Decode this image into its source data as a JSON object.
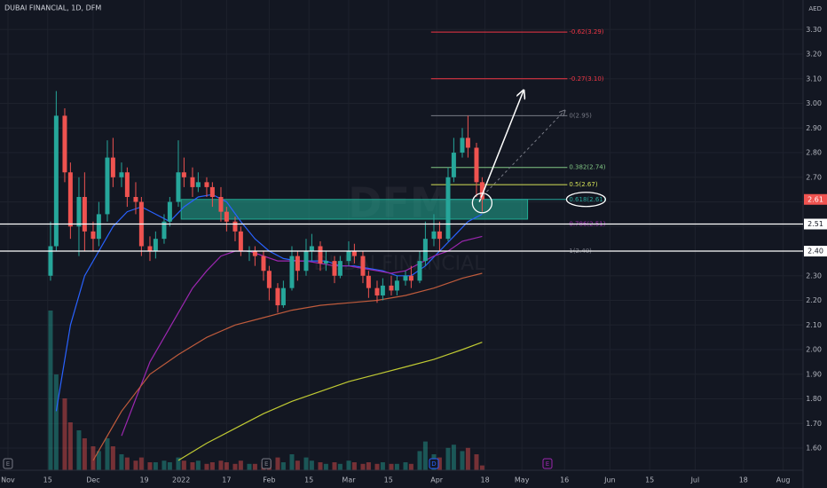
{
  "chart_data": {
    "type": "candlestick",
    "title": "DUBAI FINANCIAL, 1D, DFM",
    "watermark": "DFM",
    "watermark_subtitle": "DUBAI FINANCIAL",
    "axis_unit": "AED",
    "up_color": "#26a69a",
    "down_color": "#ef5350",
    "grid": true,
    "xlim": [
      -2.8,
      280
    ],
    "ylim": [
      1.51,
      3.42
    ],
    "xticks": [
      {
        "value": 0,
        "label": "Nov"
      },
      {
        "value": 14,
        "label": "15"
      },
      {
        "value": 30,
        "label": "Dec"
      },
      {
        "value": 48,
        "label": "19"
      },
      {
        "value": 61,
        "label": "2022"
      },
      {
        "value": 77,
        "label": "17"
      },
      {
        "value": 92,
        "label": "Feb"
      },
      {
        "value": 106,
        "label": "15"
      },
      {
        "value": 120,
        "label": "Mar"
      },
      {
        "value": 134,
        "label": "15"
      },
      {
        "value": 151,
        "label": "Apr"
      },
      {
        "value": 168,
        "label": "18"
      },
      {
        "value": 181,
        "label": "May"
      },
      {
        "value": 196,
        "label": "16"
      },
      {
        "value": 212,
        "label": "Jun"
      },
      {
        "value": 226,
        "label": "15"
      },
      {
        "value": 242,
        "label": "Jul"
      },
      {
        "value": 259,
        "label": "18"
      },
      {
        "value": 273,
        "label": "Aug"
      }
    ],
    "yticks": [
      {
        "value": 3.3,
        "label": "3.30"
      },
      {
        "value": 3.2,
        "label": "3.20"
      },
      {
        "value": 3.1,
        "label": "3.10"
      },
      {
        "value": 3.0,
        "label": "3.00"
      },
      {
        "value": 2.9,
        "label": "2.90"
      },
      {
        "value": 2.8,
        "label": "2.80"
      },
      {
        "value": 2.7,
        "label": "2.70"
      },
      {
        "value": 2.6,
        "label": "2.60"
      },
      {
        "value": 2.5,
        "label": "2.50"
      },
      {
        "value": 2.4,
        "label": "2.40"
      },
      {
        "value": 2.3,
        "label": "2.30"
      },
      {
        "value": 2.2,
        "label": "2.20"
      },
      {
        "value": 2.1,
        "label": "2.10"
      },
      {
        "value": 2.0,
        "label": "2.00"
      },
      {
        "value": 1.9,
        "label": "1.90"
      },
      {
        "value": 1.8,
        "label": "1.80"
      },
      {
        "value": 1.7,
        "label": "1.70"
      },
      {
        "value": 1.6,
        "label": "1.60"
      }
    ],
    "x": [
      15,
      17,
      20,
      22,
      25,
      27,
      30,
      32,
      35,
      37,
      40,
      42,
      45,
      47,
      50,
      52,
      55,
      57,
      60,
      62,
      65,
      67,
      70,
      72,
      75,
      77,
      80,
      82,
      85,
      87,
      90,
      92,
      95,
      97,
      100,
      102,
      105,
      107,
      110,
      112,
      115,
      117,
      120,
      122,
      125,
      127,
      130,
      132,
      135,
      137,
      140,
      142,
      145,
      147,
      150,
      152,
      155,
      157,
      160,
      162,
      165,
      167
    ],
    "open": [
      2.3,
      2.42,
      2.95,
      2.72,
      2.5,
      2.62,
      2.48,
      2.45,
      2.55,
      2.78,
      2.7,
      2.72,
      2.62,
      2.6,
      2.42,
      2.4,
      2.45,
      2.52,
      2.6,
      2.72,
      2.7,
      2.66,
      2.68,
      2.66,
      2.62,
      2.56,
      2.52,
      2.48,
      2.4,
      2.4,
      2.38,
      2.32,
      2.25,
      2.18,
      2.25,
      2.38,
      2.32,
      2.4,
      2.42,
      2.35,
      2.36,
      2.3,
      2.36,
      2.4,
      2.38,
      2.3,
      2.25,
      2.22,
      2.26,
      2.24,
      2.28,
      2.3,
      2.28,
      2.36,
      2.45,
      2.48,
      2.45,
      2.7,
      2.8,
      2.86,
      2.82,
      2.68
    ],
    "high": [
      2.52,
      3.05,
      2.98,
      2.76,
      2.7,
      2.72,
      2.52,
      2.6,
      2.85,
      2.86,
      2.76,
      2.74,
      2.68,
      2.62,
      2.46,
      2.48,
      2.55,
      2.62,
      2.85,
      2.78,
      2.74,
      2.72,
      2.7,
      2.68,
      2.66,
      2.58,
      2.54,
      2.5,
      2.42,
      2.42,
      2.4,
      2.34,
      2.27,
      2.28,
      2.42,
      2.4,
      2.45,
      2.47,
      2.44,
      2.4,
      2.38,
      2.38,
      2.44,
      2.43,
      2.4,
      2.32,
      2.28,
      2.29,
      2.3,
      2.3,
      2.32,
      2.34,
      2.4,
      2.52,
      2.55,
      2.52,
      2.74,
      2.86,
      2.9,
      2.95,
      2.84,
      2.7
    ],
    "low": [
      2.28,
      2.4,
      2.68,
      2.45,
      2.38,
      2.4,
      2.4,
      2.42,
      2.52,
      2.66,
      2.66,
      2.58,
      2.55,
      2.38,
      2.36,
      2.37,
      2.43,
      2.5,
      2.58,
      2.66,
      2.62,
      2.64,
      2.62,
      2.58,
      2.52,
      2.48,
      2.44,
      2.38,
      2.36,
      2.34,
      2.28,
      2.2,
      2.15,
      2.17,
      2.24,
      2.28,
      2.3,
      2.36,
      2.32,
      2.32,
      2.27,
      2.29,
      2.34,
      2.35,
      2.27,
      2.21,
      2.19,
      2.2,
      2.22,
      2.22,
      2.26,
      2.25,
      2.27,
      2.34,
      2.42,
      2.4,
      2.44,
      2.68,
      2.78,
      2.78,
      2.62,
      2.56
    ],
    "close": [
      2.42,
      2.95,
      2.72,
      2.5,
      2.62,
      2.48,
      2.45,
      2.55,
      2.78,
      2.7,
      2.72,
      2.62,
      2.6,
      2.42,
      2.4,
      2.45,
      2.52,
      2.6,
      2.72,
      2.7,
      2.66,
      2.68,
      2.66,
      2.62,
      2.56,
      2.52,
      2.48,
      2.4,
      2.4,
      2.38,
      2.32,
      2.25,
      2.18,
      2.25,
      2.38,
      2.32,
      2.4,
      2.42,
      2.35,
      2.36,
      2.3,
      2.36,
      2.4,
      2.38,
      2.3,
      2.25,
      2.22,
      2.26,
      2.24,
      2.28,
      2.3,
      2.28,
      2.36,
      2.45,
      2.48,
      2.45,
      2.7,
      2.8,
      2.86,
      2.82,
      2.68,
      2.61
    ],
    "volume": [
      100,
      60,
      45,
      30,
      25,
      20,
      15,
      12,
      20,
      15,
      10,
      8,
      6,
      8,
      5,
      5,
      6,
      5,
      8,
      6,
      5,
      6,
      4,
      5,
      6,
      5,
      4,
      6,
      4,
      4,
      5,
      6,
      8,
      5,
      10,
      6,
      8,
      6,
      5,
      4,
      5,
      4,
      6,
      5,
      4,
      5,
      4,
      5,
      4,
      4,
      5,
      4,
      12,
      18,
      10,
      8,
      14,
      16,
      12,
      14,
      10,
      3
    ],
    "moving_averages": [
      {
        "color": "#2962ff",
        "x": [
          17,
          22,
          27,
          32,
          37,
          42,
          47,
          52,
          57,
          62,
          67,
          72,
          77,
          82,
          87,
          92,
          97,
          102,
          107,
          112,
          117,
          122,
          127,
          132,
          137,
          142,
          147,
          152,
          157,
          162,
          167
        ],
        "values": [
          1.75,
          2.1,
          2.3,
          2.4,
          2.5,
          2.56,
          2.58,
          2.55,
          2.52,
          2.58,
          2.62,
          2.63,
          2.6,
          2.52,
          2.45,
          2.4,
          2.37,
          2.36,
          2.36,
          2.36,
          2.34,
          2.34,
          2.33,
          2.32,
          2.3,
          2.3,
          2.34,
          2.4,
          2.46,
          2.52,
          2.55
        ]
      },
      {
        "color": "#9c27b0",
        "x": [
          40,
          45,
          50,
          55,
          60,
          65,
          70,
          75,
          80,
          85,
          90,
          95,
          100,
          105,
          110,
          115,
          120,
          125,
          130,
          135,
          140,
          145,
          150,
          155,
          160,
          167
        ],
        "values": [
          1.65,
          1.8,
          1.95,
          2.05,
          2.15,
          2.25,
          2.32,
          2.38,
          2.4,
          2.4,
          2.38,
          2.36,
          2.36,
          2.36,
          2.35,
          2.34,
          2.34,
          2.33,
          2.32,
          2.31,
          2.32,
          2.35,
          2.38,
          2.4,
          2.44,
          2.46
        ]
      },
      {
        "color": "#bf5b3c",
        "x": [
          30,
          40,
          50,
          60,
          70,
          80,
          90,
          100,
          110,
          120,
          130,
          140,
          150,
          160,
          167
        ],
        "values": [
          1.55,
          1.75,
          1.9,
          1.98,
          2.05,
          2.1,
          2.13,
          2.16,
          2.18,
          2.19,
          2.2,
          2.22,
          2.25,
          2.29,
          2.31
        ]
      },
      {
        "color": "#c0ca33",
        "x": [
          60,
          70,
          80,
          90,
          100,
          110,
          120,
          130,
          140,
          150,
          160,
          167
        ],
        "values": [
          1.55,
          1.62,
          1.68,
          1.74,
          1.79,
          1.83,
          1.87,
          1.9,
          1.93,
          1.96,
          2.0,
          2.03
        ]
      }
    ],
    "zone": {
      "x": [
        61,
        183
      ],
      "y": [
        2.53,
        2.61
      ],
      "color": "#22ab94"
    },
    "fib": {
      "x": [
        149,
        197
      ],
      "levels": [
        {
          "value": 3.29,
          "label": "-0.62(3.29)",
          "color": "#f23645"
        },
        {
          "value": 3.1,
          "label": "-0.27(3.10)",
          "color": "#f23645"
        },
        {
          "value": 2.95,
          "label": "0(2.95)",
          "color": "#787b86"
        },
        {
          "value": 2.74,
          "label": "0.382(2.74)",
          "color": "#81c784"
        },
        {
          "value": 2.67,
          "label": "0.5(2.67)",
          "color": "#d4e157"
        },
        {
          "value": 2.61,
          "label": "0.618(2.61)",
          "color": "#26a69a"
        },
        {
          "value": 2.51,
          "label": "0.786(2.51)",
          "color": "#9c27b0"
        },
        {
          "value": 2.4,
          "label": "1(2.40)",
          "color": "#787b86"
        }
      ]
    },
    "price_lines": [
      2.51,
      {
        "value": 2.4,
        "label": "2.40"
      }
    ],
    "last_price": 2.61,
    "arrows": [
      {
        "x": [
          166,
          181.5
        ],
        "y": [
          2.6,
          3.05
        ],
        "style": "solid"
      },
      {
        "x": [
          166,
          196
        ],
        "y": [
          2.61,
          2.97
        ],
        "style": "dashed"
      }
    ],
    "markers": [
      {
        "x": 0,
        "label": "E",
        "color": "#787b86"
      },
      {
        "x": 91,
        "label": "E",
        "color": "#787b86"
      },
      {
        "x": 150,
        "label": "D",
        "color": "#2962ff"
      },
      {
        "x": 190,
        "label": "E",
        "color": "#9c27b0"
      }
    ]
  }
}
